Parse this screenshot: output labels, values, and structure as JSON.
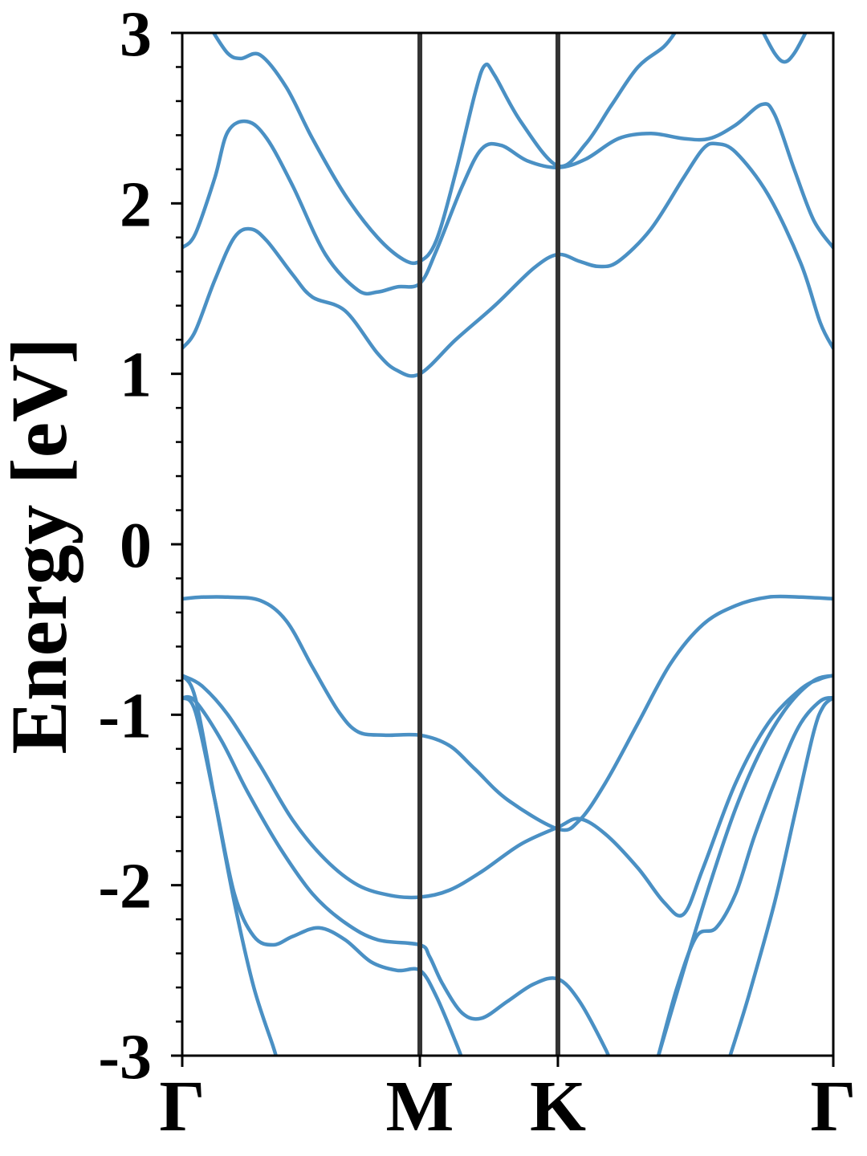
{
  "chart_data": {
    "type": "line",
    "ylabel": "Energy [eV]",
    "ylim": [
      -3,
      3
    ],
    "xlim": [
      0,
      1
    ],
    "y_ticks": [
      "-3",
      "-2",
      "-1",
      "0",
      "1",
      "2",
      "3"
    ],
    "y_minor_step": 0.2,
    "k_points": [
      {
        "label": "Γ",
        "x": 0.0
      },
      {
        "label": "M",
        "x": 0.365
      },
      {
        "label": "K",
        "x": 0.577
      },
      {
        "label": "Γ",
        "x": 1.0
      }
    ],
    "grid": false,
    "line_color": "#4a90c4",
    "divider_color": "#333333",
    "series": [
      {
        "points": [
          [
            0.0,
            1.15
          ],
          [
            0.02,
            1.25
          ],
          [
            0.05,
            1.55
          ],
          [
            0.08,
            1.8
          ],
          [
            0.105,
            1.85
          ],
          [
            0.13,
            1.78
          ],
          [
            0.17,
            1.58
          ],
          [
            0.2,
            1.45
          ],
          [
            0.25,
            1.37
          ],
          [
            0.3,
            1.12
          ],
          [
            0.33,
            1.02
          ],
          [
            0.365,
            1.0
          ],
          [
            0.42,
            1.2
          ],
          [
            0.48,
            1.4
          ],
          [
            0.54,
            1.62
          ],
          [
            0.577,
            1.7
          ],
          [
            0.61,
            1.66
          ],
          [
            0.64,
            1.63
          ],
          [
            0.67,
            1.66
          ],
          [
            0.72,
            1.85
          ],
          [
            0.77,
            2.15
          ],
          [
            0.8,
            2.32
          ],
          [
            0.82,
            2.35
          ],
          [
            0.85,
            2.3
          ],
          [
            0.9,
            2.05
          ],
          [
            0.95,
            1.65
          ],
          [
            0.98,
            1.3
          ],
          [
            1.0,
            1.15
          ]
        ]
      },
      {
        "points": [
          [
            0.0,
            1.74
          ],
          [
            0.02,
            1.82
          ],
          [
            0.05,
            2.15
          ],
          [
            0.07,
            2.42
          ],
          [
            0.1,
            2.48
          ],
          [
            0.13,
            2.38
          ],
          [
            0.17,
            2.1
          ],
          [
            0.22,
            1.7
          ],
          [
            0.27,
            1.49
          ],
          [
            0.3,
            1.48
          ],
          [
            0.33,
            1.51
          ],
          [
            0.365,
            1.53
          ],
          [
            0.39,
            1.72
          ],
          [
            0.43,
            2.1
          ],
          [
            0.46,
            2.32
          ],
          [
            0.49,
            2.34
          ],
          [
            0.53,
            2.25
          ],
          [
            0.577,
            2.21
          ],
          [
            0.62,
            2.26
          ],
          [
            0.67,
            2.38
          ],
          [
            0.72,
            2.41
          ],
          [
            0.77,
            2.38
          ],
          [
            0.81,
            2.38
          ],
          [
            0.85,
            2.46
          ],
          [
            0.89,
            2.58
          ],
          [
            0.91,
            2.52
          ],
          [
            0.94,
            2.2
          ],
          [
            0.97,
            1.9
          ],
          [
            1.0,
            1.74
          ]
        ]
      },
      {
        "points": [
          [
            0.045,
            3.02
          ],
          [
            0.07,
            2.88
          ],
          [
            0.09,
            2.85
          ],
          [
            0.12,
            2.87
          ],
          [
            0.16,
            2.68
          ],
          [
            0.2,
            2.38
          ],
          [
            0.25,
            2.05
          ],
          [
            0.3,
            1.8
          ],
          [
            0.34,
            1.67
          ],
          [
            0.365,
            1.66
          ],
          [
            0.39,
            1.78
          ],
          [
            0.42,
            2.18
          ],
          [
            0.45,
            2.65
          ],
          [
            0.465,
            2.81
          ],
          [
            0.48,
            2.75
          ],
          [
            0.52,
            2.48
          ],
          [
            0.577,
            2.22
          ],
          [
            0.62,
            2.35
          ],
          [
            0.66,
            2.58
          ],
          [
            0.7,
            2.8
          ],
          [
            0.74,
            2.92
          ],
          [
            0.76,
            3.02
          ]
        ]
      },
      {
        "points": [
          [
            0.89,
            3.02
          ],
          [
            0.91,
            2.88
          ],
          [
            0.925,
            2.83
          ],
          [
            0.94,
            2.88
          ],
          [
            0.96,
            3.02
          ]
        ]
      },
      {
        "points": [
          [
            0.0,
            -0.32
          ],
          [
            0.03,
            -0.31
          ],
          [
            0.07,
            -0.31
          ],
          [
            0.12,
            -0.33
          ],
          [
            0.16,
            -0.45
          ],
          [
            0.2,
            -0.72
          ],
          [
            0.24,
            -0.98
          ],
          [
            0.27,
            -1.1
          ],
          [
            0.31,
            -1.12
          ],
          [
            0.365,
            -1.12
          ],
          [
            0.41,
            -1.18
          ],
          [
            0.45,
            -1.32
          ],
          [
            0.5,
            -1.5
          ],
          [
            0.577,
            -1.67
          ],
          [
            0.61,
            -1.62
          ],
          [
            0.65,
            -1.4
          ],
          [
            0.7,
            -1.05
          ],
          [
            0.75,
            -0.7
          ],
          [
            0.8,
            -0.47
          ],
          [
            0.85,
            -0.36
          ],
          [
            0.9,
            -0.31
          ],
          [
            0.95,
            -0.31
          ],
          [
            1.0,
            -0.32
          ]
        ]
      },
      {
        "points": [
          [
            0.0,
            -0.77
          ],
          [
            0.03,
            -0.83
          ],
          [
            0.07,
            -1.0
          ],
          [
            0.12,
            -1.3
          ],
          [
            0.17,
            -1.62
          ],
          [
            0.22,
            -1.85
          ],
          [
            0.27,
            -2.0
          ],
          [
            0.32,
            -2.06
          ],
          [
            0.365,
            -2.07
          ],
          [
            0.41,
            -2.03
          ],
          [
            0.46,
            -1.92
          ],
          [
            0.52,
            -1.76
          ],
          [
            0.577,
            -1.66
          ],
          [
            0.61,
            -1.61
          ],
          [
            0.65,
            -1.7
          ],
          [
            0.7,
            -1.9
          ],
          [
            0.74,
            -2.1
          ],
          [
            0.77,
            -2.17
          ],
          [
            0.8,
            -1.9
          ],
          [
            0.85,
            -1.4
          ],
          [
            0.9,
            -1.05
          ],
          [
            0.95,
            -0.85
          ],
          [
            0.98,
            -0.79
          ],
          [
            1.0,
            -0.77
          ]
        ]
      },
      {
        "points": [
          [
            0.0,
            -0.9
          ],
          [
            0.02,
            -0.92
          ],
          [
            0.06,
            -1.15
          ],
          [
            0.1,
            -1.45
          ],
          [
            0.15,
            -1.78
          ],
          [
            0.2,
            -2.05
          ],
          [
            0.25,
            -2.22
          ],
          [
            0.3,
            -2.32
          ],
          [
            0.365,
            -2.35
          ],
          [
            0.38,
            -2.42
          ],
          [
            0.4,
            -2.58
          ],
          [
            0.43,
            -2.75
          ],
          [
            0.46,
            -2.78
          ],
          [
            0.5,
            -2.68
          ],
          [
            0.54,
            -2.58
          ],
          [
            0.577,
            -2.55
          ],
          [
            0.61,
            -2.68
          ],
          [
            0.65,
            -2.96
          ],
          [
            0.655,
            -3.02
          ]
        ]
      },
      {
        "points": [
          [
            0.0,
            -0.9
          ],
          [
            0.02,
            -0.98
          ],
          [
            0.05,
            -1.5
          ],
          [
            0.08,
            -2.05
          ],
          [
            0.11,
            -2.3
          ],
          [
            0.14,
            -2.35
          ],
          [
            0.17,
            -2.3
          ],
          [
            0.21,
            -2.25
          ],
          [
            0.25,
            -2.32
          ],
          [
            0.29,
            -2.45
          ],
          [
            0.33,
            -2.5
          ],
          [
            0.365,
            -2.5
          ],
          [
            0.39,
            -2.65
          ],
          [
            0.42,
            -2.92
          ],
          [
            0.43,
            -3.02
          ]
        ]
      },
      {
        "points": [
          [
            0.0,
            -0.77
          ],
          [
            0.02,
            -0.9
          ],
          [
            0.05,
            -1.5
          ],
          [
            0.08,
            -2.1
          ],
          [
            0.11,
            -2.6
          ],
          [
            0.14,
            -2.95
          ],
          [
            0.145,
            -3.02
          ]
        ]
      },
      {
        "points": [
          [
            0.73,
            -3.02
          ],
          [
            0.76,
            -2.6
          ],
          [
            0.79,
            -2.3
          ],
          [
            0.82,
            -2.25
          ],
          [
            0.85,
            -2.05
          ],
          [
            0.88,
            -1.7
          ],
          [
            0.92,
            -1.3
          ],
          [
            0.95,
            -1.05
          ],
          [
            0.98,
            -0.92
          ],
          [
            1.0,
            -0.9
          ]
        ]
      },
      {
        "points": [
          [
            0.73,
            -3.02
          ],
          [
            0.77,
            -2.5
          ],
          [
            0.81,
            -2.0
          ],
          [
            0.85,
            -1.55
          ],
          [
            0.89,
            -1.2
          ],
          [
            0.93,
            -0.95
          ],
          [
            0.97,
            -0.8
          ],
          [
            1.0,
            -0.77
          ]
        ]
      },
      {
        "points": [
          [
            0.84,
            -3.02
          ],
          [
            0.87,
            -2.65
          ],
          [
            0.91,
            -2.1
          ],
          [
            0.94,
            -1.6
          ],
          [
            0.97,
            -1.1
          ],
          [
            0.985,
            -0.95
          ],
          [
            1.0,
            -0.9
          ]
        ]
      }
    ]
  }
}
